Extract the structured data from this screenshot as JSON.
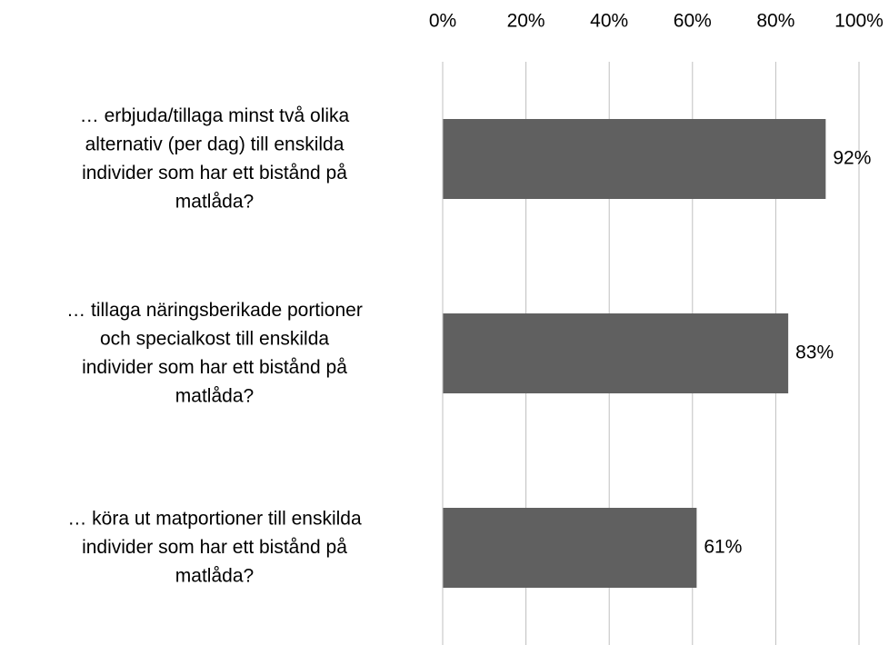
{
  "chart_data": {
    "type": "bar",
    "orientation": "horizontal",
    "categories": [
      "… erbjuda/tillaga minst två olika\nalternativ (per dag)  till enskilda\nindivider som har ett bistånd på\nmatlåda?",
      "… tillaga näringsberikade portioner\noch specialkost  till enskilda\nindivider som har ett bistånd på\nmatlåda?",
      "… köra ut matportioner till enskilda\nindivider som har ett bistånd på\nmatlåda?"
    ],
    "values": [
      92,
      83,
      61
    ],
    "value_labels": [
      "92%",
      "83%",
      "61%"
    ],
    "color": "#606060",
    "xlim": [
      0,
      100
    ],
    "xticks": [
      {
        "value": 0,
        "label": "0%"
      },
      {
        "value": 20,
        "label": "20%"
      },
      {
        "value": 40,
        "label": "40%"
      },
      {
        "value": 60,
        "label": "60%"
      },
      {
        "value": 80,
        "label": "80%"
      },
      {
        "value": 100,
        "label": "100%"
      }
    ],
    "grid": true
  }
}
